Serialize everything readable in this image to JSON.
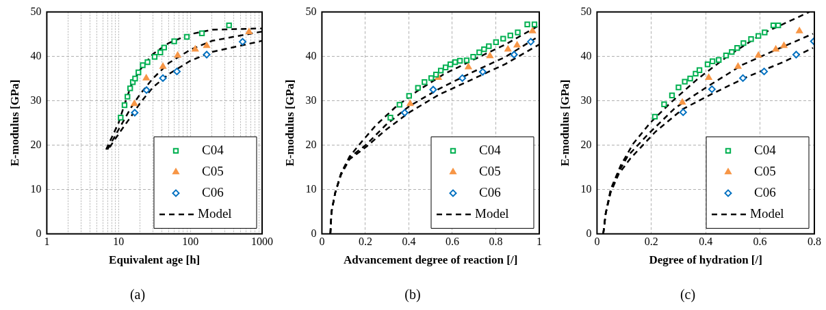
{
  "chart_data": [
    {
      "type": "scatter",
      "xlabel": "Equivalent age [h]",
      "ylabel": "E-modulus [GPa]",
      "annotations": [
        "(a)"
      ],
      "log": "x",
      "xlim": [
        1,
        1000
      ],
      "ylim": [
        0,
        50
      ],
      "xticks": [
        1,
        {
          "value": 2,
          "label": null
        },
        {
          "value": 3,
          "label": null
        },
        {
          "value": 4,
          "label": null
        },
        {
          "value": 5,
          "label": null
        },
        {
          "value": 6,
          "label": null
        },
        {
          "value": 7,
          "label": null
        },
        {
          "value": 8,
          "label": null
        },
        {
          "value": 9,
          "label": null
        },
        10,
        {
          "value": 20,
          "label": null
        },
        {
          "value": 30,
          "label": null
        },
        {
          "value": 40,
          "label": null
        },
        {
          "value": 50,
          "label": null
        },
        {
          "value": 60,
          "label": null
        },
        {
          "value": 70,
          "label": null
        },
        {
          "value": 80,
          "label": null
        },
        {
          "value": 90,
          "label": null
        },
        100,
        {
          "value": 200,
          "label": null
        },
        {
          "value": 300,
          "label": null
        },
        {
          "value": 400,
          "label": null
        },
        {
          "value": 500,
          "label": null
        },
        {
          "value": 600,
          "label": null
        },
        {
          "value": 700,
          "label": null
        },
        {
          "value": 800,
          "label": null
        },
        {
          "value": 900,
          "label": null
        },
        1000
      ],
      "yticks": [
        0,
        10,
        20,
        30,
        40,
        50
      ],
      "grid": true,
      "legend": "bottom right",
      "series": [
        {
          "name": "C04",
          "color": "#00b050",
          "marker": "square",
          "x": [
            10.7,
            12.1,
            13.3,
            14.5,
            15.8,
            17.0,
            18.9,
            21.7,
            25.3,
            31.8,
            38.2,
            43.1,
            59.6,
            89.4,
            145,
            346
          ],
          "values": [
            26.2,
            29.0,
            30.9,
            32.8,
            34.2,
            35.0,
            36.4,
            38.0,
            38.7,
            39.9,
            40.9,
            42.0,
            43.4,
            44.4,
            45.2,
            47.0
          ]
        },
        {
          "name": "C05",
          "color": "#f79646",
          "marker": "triangle",
          "x": [
            16.6,
            24.3,
            41.5,
            66.5,
            117,
            169,
            658
          ],
          "values": [
            29.3,
            35.1,
            37.7,
            40.2,
            41.6,
            42.4,
            45.5
          ]
        },
        {
          "name": "C06",
          "color": "#0070c0",
          "marker": "diamond",
          "x": [
            16.8,
            24.5,
            41.5,
            65,
            169,
            535
          ],
          "values": [
            27.3,
            32.4,
            35.1,
            36.6,
            40.4,
            43.3
          ]
        },
        {
          "name": "Model",
          "type": "line",
          "color": "#000000",
          "marker": "none",
          "line_style": "dashed",
          "x": [
            6.7,
            10,
            12,
            15,
            20,
            30,
            50,
            100,
            200,
            1000
          ],
          "values": [
            19.0,
            25.0,
            29.0,
            33.5,
            37.0,
            40.5,
            43.0,
            45.0,
            46.0,
            46.3
          ]
        },
        {
          "type": "line",
          "color": "#000000",
          "marker": "none",
          "line_style": "dashed",
          "x": [
            7,
            10,
            15,
            20,
            30,
            50,
            100,
            200,
            1000
          ],
          "values": [
            19.0,
            23.5,
            28.5,
            31.5,
            35.0,
            38.5,
            41.5,
            43.5,
            45.6
          ]
        },
        {
          "type": "line",
          "color": "#000000",
          "marker": "none",
          "line_style": "dashed",
          "x": [
            7.5,
            10,
            15,
            20,
            30,
            50,
            100,
            200,
            1000
          ],
          "values": [
            19.5,
            22.5,
            26.5,
            29.5,
            33.0,
            36.0,
            39.0,
            41.0,
            43.5
          ]
        }
      ]
    },
    {
      "type": "scatter",
      "xlabel": "Advancement degree of reaction [/]",
      "ylabel": "E-modulus [GPa]",
      "annotations": [
        "(b)"
      ],
      "xlim": [
        0,
        1
      ],
      "ylim": [
        0,
        50
      ],
      "xticks": [
        0,
        0.2,
        0.4,
        0.6,
        0.8,
        1
      ],
      "yticks": [
        0,
        10,
        20,
        30,
        40,
        50
      ],
      "grid": true,
      "legend": "bottom right",
      "series": [
        {
          "name": "C04",
          "color": "#00b050",
          "marker": "square",
          "x": [
            0.315,
            0.357,
            0.401,
            0.442,
            0.472,
            0.503,
            0.525,
            0.547,
            0.569,
            0.591,
            0.613,
            0.635,
            0.666,
            0.696,
            0.724,
            0.746,
            0.768,
            0.801,
            0.834,
            0.867,
            0.901,
            0.945,
            0.978
          ],
          "values": [
            26.2,
            29.1,
            31.1,
            32.9,
            34.2,
            35.1,
            35.9,
            36.8,
            37.5,
            38.2,
            38.7,
            39.0,
            39.1,
            39.9,
            40.9,
            41.6,
            42.3,
            43.2,
            44.0,
            44.7,
            45.4,
            47.2,
            47.2
          ]
        },
        {
          "name": "C05",
          "color": "#f79646",
          "marker": "triangle",
          "x": [
            0.406,
            0.536,
            0.674,
            0.773,
            0.856,
            0.898,
            0.969
          ],
          "values": [
            29.3,
            35.2,
            37.6,
            40.1,
            41.6,
            42.5,
            45.7
          ]
        },
        {
          "name": "C06",
          "color": "#0070c0",
          "marker": "diamond",
          "x": [
            0.381,
            0.512,
            0.646,
            0.74,
            0.884,
            0.961
          ],
          "values": [
            27.3,
            32.5,
            35.1,
            36.5,
            40.4,
            43.3
          ]
        },
        {
          "name": "Model",
          "type": "line",
          "color": "#000000",
          "marker": "none",
          "line_style": "dashed",
          "x": [
            0.039,
            0.044,
            0.061,
            0.088,
            0.127,
            0.182,
            0.249,
            0.337,
            0.436,
            0.558,
            0.691,
            0.845,
            1
          ],
          "values": [
            0,
            4.9,
            9.2,
            13.6,
            17.4,
            20.7,
            24.5,
            28.5,
            32.1,
            35.9,
            39.1,
            42.7,
            47.0
          ]
        },
        {
          "type": "line",
          "color": "#000000",
          "marker": "none",
          "line_style": "dashed",
          "x": [
            0.039,
            0.044,
            0.061,
            0.088,
            0.127,
            0.204,
            0.293,
            0.403,
            0.536,
            0.691,
            0.845,
            1
          ],
          "values": [
            0,
            4.9,
            9.2,
            13.6,
            17.2,
            20.1,
            24.5,
            28.8,
            32.6,
            36.4,
            39.9,
            44.6
          ]
        },
        {
          "type": "line",
          "color": "#000000",
          "marker": "none",
          "line_style": "dashed",
          "x": [
            0.039,
            0.044,
            0.061,
            0.088,
            0.127,
            0.204,
            0.293,
            0.403,
            0.536,
            0.691,
            0.845,
            1
          ],
          "values": [
            0,
            4.9,
            9.2,
            13.3,
            16.8,
            19.6,
            23.4,
            27.4,
            31.3,
            34.8,
            38.3,
            42.7
          ]
        }
      ]
    },
    {
      "type": "scatter",
      "xlabel": "Degree of hydration [/]",
      "ylabel": "E-modulus [GPa]",
      "annotations": [
        "(c)"
      ],
      "xlim": [
        0,
        0.8
      ],
      "ylim": [
        0,
        50
      ],
      "xticks": [
        0,
        0.2,
        0.4,
        0.6,
        0.8
      ],
      "yticks": [
        0,
        10,
        20,
        30,
        40,
        50
      ],
      "grid": true,
      "legend": "bottom right",
      "series": [
        {
          "name": "C04",
          "color": "#00b050",
          "marker": "square",
          "x": [
            0.213,
            0.247,
            0.276,
            0.3,
            0.323,
            0.343,
            0.363,
            0.377,
            0.407,
            0.425,
            0.448,
            0.475,
            0.496,
            0.516,
            0.539,
            0.567,
            0.594,
            0.617,
            0.649,
            0.667
          ],
          "values": [
            26.4,
            29.2,
            31.2,
            33.0,
            34.3,
            35.0,
            36.1,
            36.9,
            38.2,
            38.9,
            39.2,
            40.2,
            41.0,
            41.9,
            43.0,
            43.9,
            44.6,
            45.4,
            47.0,
            47.0
          ]
        },
        {
          "name": "C05",
          "color": "#f79646",
          "marker": "triangle",
          "x": [
            0.314,
            0.411,
            0.519,
            0.594,
            0.658,
            0.688,
            0.745
          ],
          "values": [
            29.6,
            35.2,
            37.7,
            40.2,
            41.6,
            42.4,
            45.7
          ]
        },
        {
          "name": "C06",
          "color": "#0070c0",
          "marker": "diamond",
          "x": [
            0.317,
            0.423,
            0.537,
            0.615,
            0.733,
            0.798
          ],
          "values": [
            27.4,
            32.6,
            35.1,
            36.6,
            40.4,
            43.4
          ]
        },
        {
          "name": "Model",
          "type": "line",
          "color": "#000000",
          "marker": "none",
          "line_style": "dashed",
          "x": [
            0.023,
            0.032,
            0.05,
            0.087,
            0.133,
            0.197,
            0.27,
            0.37,
            0.48,
            0.608,
            0.781
          ],
          "values": [
            0,
            4.6,
            10.0,
            15.4,
            20.3,
            25.1,
            29.5,
            34.9,
            40.0,
            45.1,
            50.0
          ]
        },
        {
          "type": "line",
          "color": "#000000",
          "marker": "none",
          "line_style": "dashed",
          "x": [
            0.023,
            0.032,
            0.05,
            0.08,
            0.114,
            0.187,
            0.288,
            0.407,
            0.535,
            0.663,
            0.795
          ],
          "values": [
            0,
            4.6,
            9.5,
            14.0,
            17.6,
            22.4,
            28.4,
            33.2,
            38.1,
            41.6,
            45.1
          ]
        },
        {
          "type": "line",
          "color": "#000000",
          "marker": "none",
          "line_style": "dashed",
          "x": [
            0.023,
            0.032,
            0.05,
            0.08,
            0.123,
            0.215,
            0.315,
            0.425,
            0.553,
            0.681,
            0.795
          ],
          "values": [
            0,
            4.6,
            9.3,
            13.5,
            17.0,
            23.0,
            28.1,
            31.6,
            35.4,
            38.6,
            41.9
          ]
        }
      ]
    }
  ]
}
